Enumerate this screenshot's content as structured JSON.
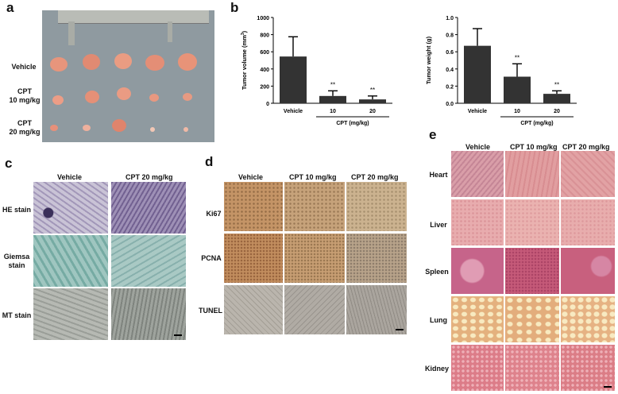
{
  "panels": {
    "a": {
      "letter": "a",
      "rows": [
        "Vehicle",
        "CPT\n10 mg/kg",
        "CPT\n20 mg/kg"
      ]
    },
    "b": {
      "letter": "b"
    },
    "c": {
      "letter": "c",
      "cols": [
        "Vehicle",
        "CPT  20 mg/kg"
      ],
      "rows": [
        "HE stain",
        "Giemsa\nstain",
        "MT stain"
      ]
    },
    "d": {
      "letter": "d",
      "cols": [
        "Vehicle",
        "CPT  10 mg/kg",
        "CPT  20 mg/kg"
      ],
      "rows": [
        "Ki67",
        "PCNA",
        "TUNEL"
      ]
    },
    "e": {
      "letter": "e",
      "cols": [
        "Vehicle",
        "CPT  10 mg/kg",
        "CPT  20 mg/kg"
      ],
      "rows": [
        "Heart",
        "Liver",
        "Spleen",
        "Lung",
        "Kidney"
      ]
    }
  },
  "chart_data": [
    {
      "type": "bar",
      "categories": [
        "Vehicle",
        "10",
        "20"
      ],
      "values": [
        545,
        85,
        45
      ],
      "errors": [
        230,
        60,
        40
      ],
      "significance": [
        "",
        "**",
        "**"
      ],
      "ylabel": "Tumor volume (mm3)",
      "ylabel_parts": [
        "Tumor volume (mm",
        "3",
        ")"
      ],
      "group_label": "CPT (mg/kg)",
      "ylim": [
        0,
        1000
      ],
      "yticks": [
        "0",
        "200",
        "400",
        "600",
        "800",
        "1000"
      ],
      "bar_color": "#333333"
    },
    {
      "type": "bar",
      "categories": [
        "Vehicle",
        "10",
        "20"
      ],
      "values": [
        0.67,
        0.31,
        0.11
      ],
      "errors": [
        0.2,
        0.15,
        0.035
      ],
      "significance": [
        "",
        "**",
        "**"
      ],
      "ylabel": "Tumor weight (g)",
      "group_label": "CPT (mg/kg)",
      "ylim": [
        0,
        1.0
      ],
      "yticks": [
        "0.0",
        "0.2",
        "0.4",
        "0.6",
        "0.8",
        "1.0"
      ],
      "bar_color": "#333333"
    }
  ],
  "colors": {
    "he_bg": "#c9c3d6",
    "giemsa_bg": "#9fc6c0",
    "mt_bg": "#b6b9b3",
    "ihc_bg": "#d6b68e",
    "tunel_bg": "#b4b0aa",
    "heart_bg": "#dd9fa3",
    "liver_bg": "#e9aeae",
    "spleen_bg": "#c95d7a",
    "lung_bg": "#e4b07e",
    "kidney_bg": "#dd7f88",
    "tray_bg": "#8f9aa0"
  }
}
